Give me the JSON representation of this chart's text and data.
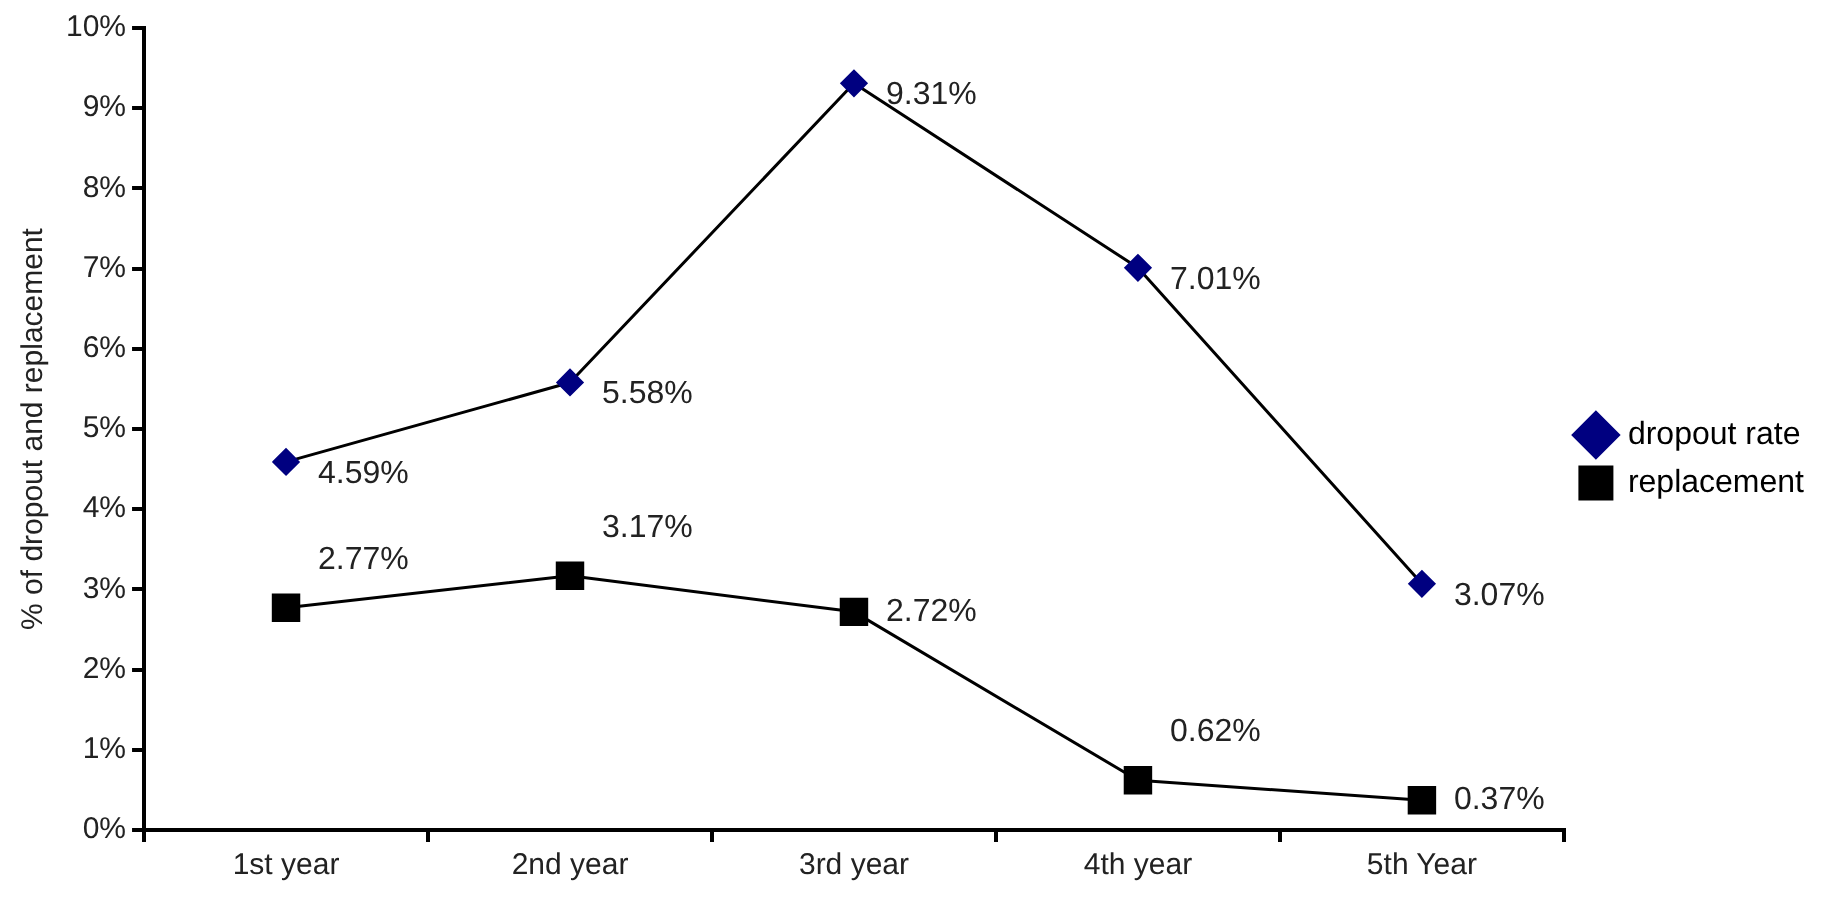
{
  "chart_data": {
    "type": "line",
    "ylabel": "% of dropout and replacement",
    "categories": [
      "1st year",
      "2nd year",
      "3rd year",
      "4th year",
      "5th Year"
    ],
    "series": [
      {
        "name": "dropout rate",
        "color": "#000080",
        "marker": "diamond",
        "values": [
          4.59,
          5.58,
          9.31,
          7.01,
          3.07
        ],
        "value_labels": [
          "4.59%",
          "5.58%",
          "9.31%",
          "7.01%",
          "3.07%"
        ]
      },
      {
        "name": "replacement",
        "color": "#000000",
        "marker": "square",
        "values": [
          2.77,
          3.17,
          2.72,
          0.62,
          0.37
        ],
        "value_labels": [
          "2.77%",
          "3.17%",
          "2.72%",
          "0.62%",
          "0.37%"
        ]
      }
    ],
    "ylim": [
      0,
      10
    ],
    "yticks": [
      {
        "value": 0,
        "label": "0%"
      },
      {
        "value": 1,
        "label": "1%"
      },
      {
        "value": 2,
        "label": "2%"
      },
      {
        "value": 3,
        "label": "3%"
      },
      {
        "value": 4,
        "label": "4%"
      },
      {
        "value": 5,
        "label": "5%"
      },
      {
        "value": 6,
        "label": "6%"
      },
      {
        "value": 7,
        "label": "7%"
      },
      {
        "value": 8,
        "label": "8%"
      },
      {
        "value": 9,
        "label": "9%"
      },
      {
        "value": 10,
        "label": "10%"
      }
    ],
    "grid": false,
    "legend": "right",
    "line_style": "solid"
  }
}
